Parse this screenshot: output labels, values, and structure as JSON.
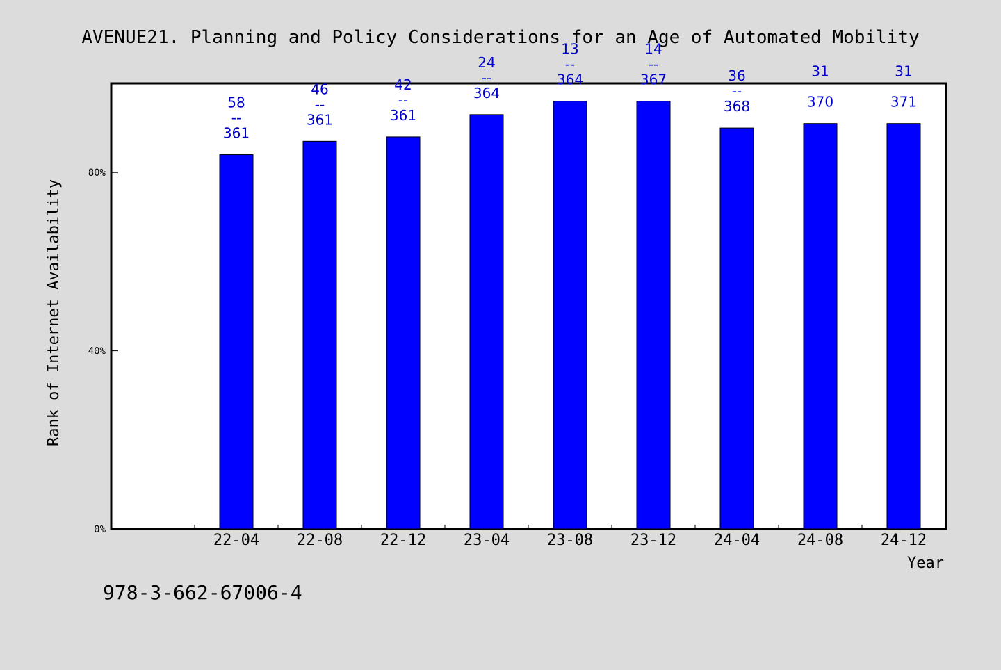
{
  "chart_data": {
    "type": "bar",
    "title": "AVENUE21. Planning and Policy Considerations for an Age of Automated Mobility",
    "xlabel": "Year",
    "ylabel": "Rank of Internet Availability",
    "categories": [
      "22-04",
      "22-08",
      "22-12",
      "23-04",
      "23-08",
      "23-12",
      "24-04",
      "24-08",
      "24-12"
    ],
    "values": [
      84,
      87,
      88,
      93,
      96,
      96,
      90,
      91,
      91
    ],
    "ylim": [
      0,
      100
    ],
    "yticks": [
      {
        "value": 0,
        "label": "0%"
      },
      {
        "value": 40,
        "label": "40%"
      },
      {
        "value": 80,
        "label": "80%"
      }
    ],
    "data_labels": [
      {
        "top": "58",
        "sep": "--",
        "bottom": "361"
      },
      {
        "top": "46",
        "sep": "--",
        "bottom": "361"
      },
      {
        "top": "42",
        "sep": "--",
        "bottom": "361"
      },
      {
        "top": "24",
        "sep": "--",
        "bottom": "364"
      },
      {
        "top": "13",
        "sep": "--",
        "bottom": "364"
      },
      {
        "top": "14",
        "sep": "--",
        "bottom": "367"
      },
      {
        "top": "36",
        "sep": "--",
        "bottom": "368"
      },
      {
        "top": "31",
        "sep": "",
        "bottom": "370"
      },
      {
        "top": "31",
        "sep": "",
        "bottom": "371"
      }
    ],
    "grid": false,
    "bar_color": "#0000ff",
    "label_color": "#0000cc"
  },
  "footer": {
    "isbn": "978-3-662-67006-4"
  }
}
